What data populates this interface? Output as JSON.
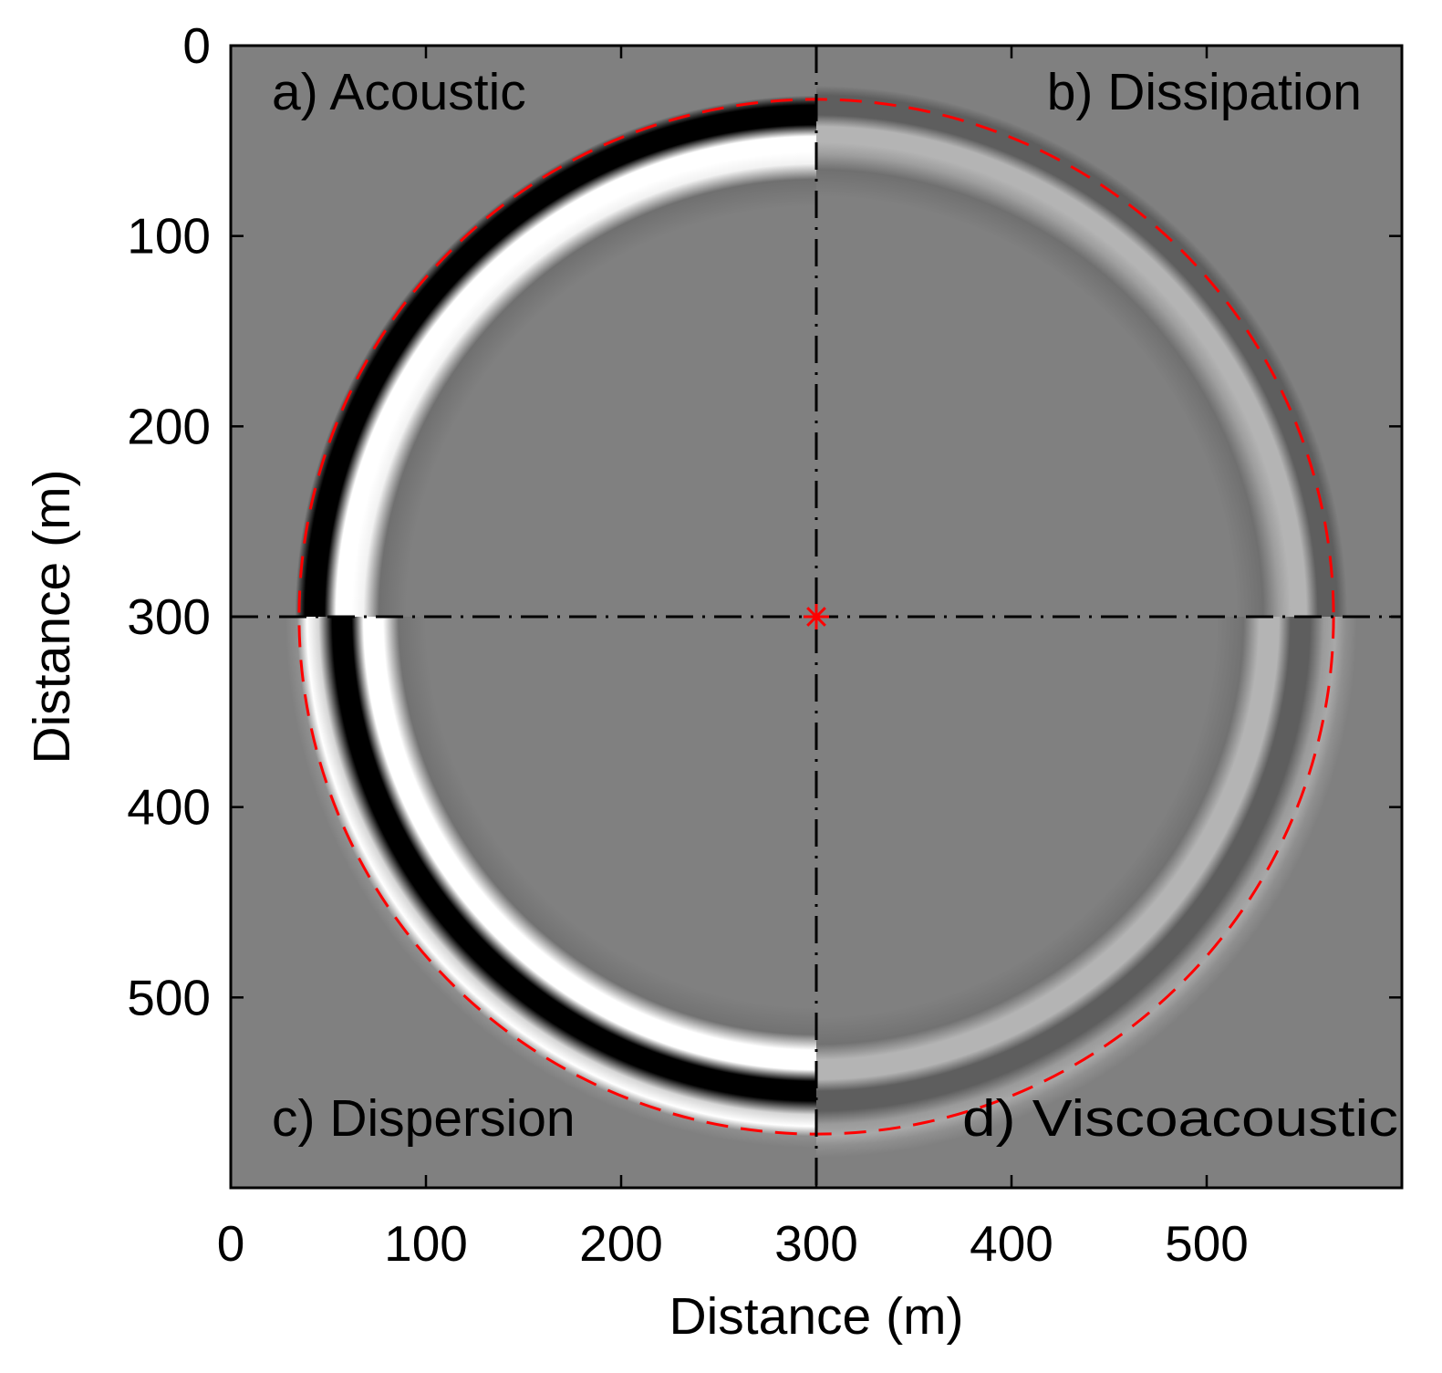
{
  "chart_data": {
    "type": "heatmap",
    "title": "",
    "xlabel": "Distance (m)",
    "ylabel": "Distance (m)",
    "xlim": [
      0,
      600
    ],
    "ylim": [
      600,
      0
    ],
    "y_axis_direction": "reversed (0 at top)",
    "x_ticks": [
      0,
      100,
      200,
      300,
      400,
      500
    ],
    "y_ticks": [
      0,
      100,
      200,
      300,
      400,
      500
    ],
    "colormap": "grayscale (black negative, white positive, gray background)",
    "background_color": "#808080",
    "source": {
      "x": 300,
      "y": 300,
      "marker": "asterisk",
      "color": "#ff0000"
    },
    "reference_circle": {
      "center_x": 300,
      "center_y": 300,
      "radius": 265,
      "style": "dashed",
      "color": "#ff0000"
    },
    "divider_lines": {
      "vertical_x": 300,
      "horizontal_y": 300,
      "style": "dash-dot",
      "color": "#000000"
    },
    "quadrants": [
      {
        "label": "a) Acoustic",
        "position": "top-left",
        "wavefront_radius": 250,
        "amplitude": "strong",
        "attenuation": false,
        "dispersion": false
      },
      {
        "label": "b) Dissipation",
        "position": "top-right",
        "wavefront_radius": 255,
        "amplitude": "weak",
        "attenuation": true,
        "dispersion": false
      },
      {
        "label": "c) Dispersion",
        "position": "bottom-left",
        "wavefront_radius": 250,
        "amplitude": "strong",
        "attenuation": false,
        "dispersion": true
      },
      {
        "label": "d) Viscoacoustic",
        "position": "bottom-right",
        "wavefront_radius": 255,
        "amplitude": "weak",
        "attenuation": true,
        "dispersion": true
      }
    ]
  }
}
